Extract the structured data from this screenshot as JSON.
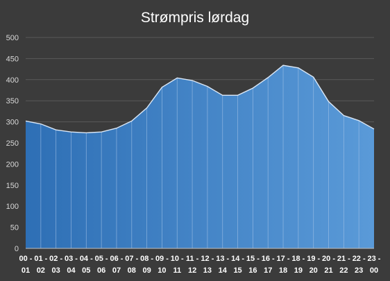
{
  "chart_data": {
    "type": "area",
    "title": "Strømpris lørdag",
    "categories": [
      "00 - 01",
      "01 - 02",
      "02 - 03",
      "03 - 04",
      "04 - 05",
      "05 - 06",
      "06 - 07",
      "07 - 08",
      "08 - 09",
      "09 - 10",
      "10 - 11",
      "11 - 12",
      "12 - 13",
      "13 - 14",
      "14 - 15",
      "15 - 16",
      "16 - 17",
      "17 - 18",
      "18 - 19",
      "19 - 20",
      "20 - 21",
      "21 - 22",
      "22 - 23",
      "23 - 00"
    ],
    "x_tick_labels": [
      "00 -",
      "01 -",
      "02 -",
      "03 -",
      "04 -",
      "05 -",
      "06 -",
      "07 -",
      "08 -",
      "09 -",
      "10 -",
      "11 -",
      "12 -",
      "13 -",
      "14 -",
      "15 -",
      "16 -",
      "17 -",
      "18 -",
      "19 -",
      "20 -",
      "21 -",
      "22 -",
      "23 -",
      "01",
      "02",
      "03",
      "04",
      "05",
      "06",
      "07",
      "08",
      "09",
      "10",
      "11",
      "12",
      "13",
      "14",
      "15",
      "16",
      "17",
      "18",
      "19",
      "20",
      "21",
      "22",
      "23",
      "00"
    ],
    "values": [
      302,
      295,
      281,
      276,
      274,
      276,
      285,
      302,
      333,
      382,
      404,
      398,
      384,
      363,
      363,
      380,
      405,
      434,
      428,
      406,
      348,
      315,
      303,
      283
    ],
    "ylim": [
      0,
      500
    ],
    "yticks": [
      "0",
      "50",
      "100",
      "150",
      "200",
      "250",
      "300",
      "350",
      "400",
      "450",
      "500"
    ],
    "grid": true,
    "legend": "none",
    "fill_colors": [
      "#2e6fb5",
      "#5a9ad8"
    ],
    "line_color": "#dbe8f7"
  }
}
